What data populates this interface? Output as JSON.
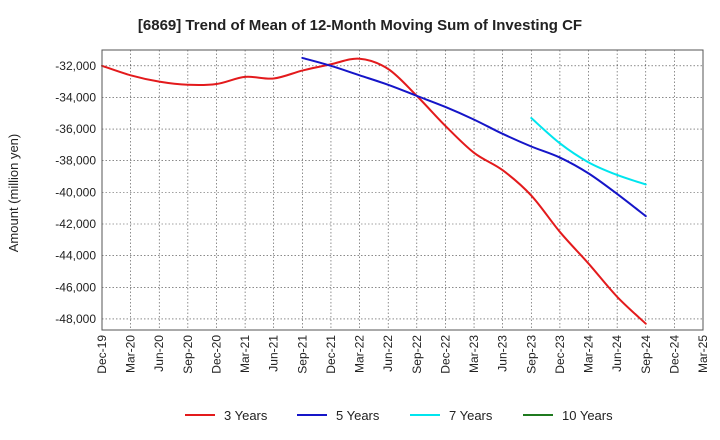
{
  "chart_data": {
    "type": "line",
    "title": "[6869]  Trend of Mean of 12-Month Moving Sum of Investing CF",
    "xlabel": "",
    "ylabel": "Amount (million yen)",
    "ylim": [
      -48700,
      -31000
    ],
    "yticks": [
      -32000,
      -34000,
      -36000,
      -38000,
      -40000,
      -42000,
      -44000,
      -46000,
      -48000
    ],
    "ytick_labels": [
      "-32,000",
      "-34,000",
      "-36,000",
      "-38,000",
      "-40,000",
      "-42,000",
      "-44,000",
      "-46,000",
      "-48,000"
    ],
    "categories": [
      "Dec-19",
      "Mar-20",
      "Jun-20",
      "Sep-20",
      "Dec-20",
      "Mar-21",
      "Jun-21",
      "Sep-21",
      "Dec-21",
      "Mar-22",
      "Jun-22",
      "Sep-22",
      "Dec-22",
      "Mar-23",
      "Jun-23",
      "Sep-23",
      "Dec-23",
      "Mar-24",
      "Jun-24",
      "Sep-24",
      "Dec-24",
      "Mar-25"
    ],
    "grid": true,
    "legend_position": "bottom",
    "series": [
      {
        "name": "3 Years",
        "color": "#e31a1c",
        "values": [
          -32000,
          -32600,
          -33000,
          -33200,
          -33150,
          -32700,
          -32800,
          -32300,
          -31900,
          -31550,
          -32200,
          -33900,
          -35800,
          -37500,
          -38600,
          -40200,
          -42500,
          -44500,
          -46600,
          -48300,
          null,
          null
        ]
      },
      {
        "name": "5 Years",
        "color": "#1515c8",
        "values": [
          null,
          null,
          null,
          null,
          null,
          null,
          null,
          -31500,
          -32000,
          -32600,
          -33200,
          -33900,
          -34600,
          -35400,
          -36300,
          -37100,
          -37800,
          -38800,
          -40100,
          -41500,
          null,
          null
        ]
      },
      {
        "name": "7 Years",
        "color": "#00e5ee",
        "values": [
          null,
          null,
          null,
          null,
          null,
          null,
          null,
          null,
          null,
          null,
          null,
          null,
          null,
          null,
          null,
          -35300,
          -36900,
          -38100,
          -38900,
          -39500,
          null,
          null
        ]
      },
      {
        "name": "10 Years",
        "color": "#1f7a1f",
        "values": [
          null,
          null,
          null,
          null,
          null,
          null,
          null,
          null,
          null,
          null,
          null,
          null,
          null,
          null,
          null,
          null,
          null,
          null,
          null,
          null,
          null,
          null
        ]
      }
    ]
  }
}
